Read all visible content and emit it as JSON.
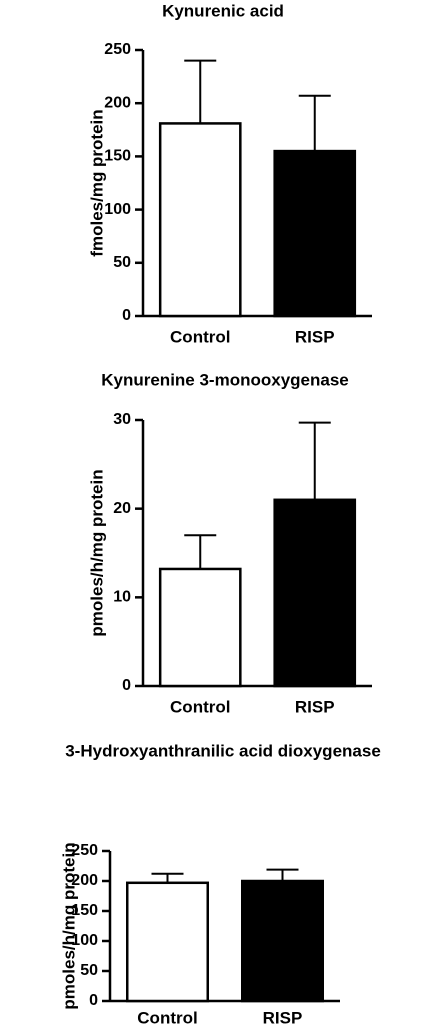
{
  "chart_data": [
    {
      "type": "bar",
      "title": "Kynurenic acid",
      "y_label": "fmoles/mg protein",
      "categories": [
        "Control",
        "RISP"
      ],
      "values": [
        181,
        155
      ],
      "errors": [
        59,
        52
      ],
      "colors": [
        "#ffffff",
        "#000000"
      ],
      "ylim": [
        0,
        250
      ],
      "yticks": [
        0,
        50,
        100,
        150,
        200,
        250
      ]
    },
    {
      "type": "bar",
      "title": "Kynurenine 3-monooxygenase",
      "y_label": "pmoles/h/mg protein",
      "categories": [
        "Control",
        "RISP"
      ],
      "values": [
        13.2,
        21
      ],
      "errors": [
        3.8,
        8.7
      ],
      "colors": [
        "#ffffff",
        "#000000"
      ],
      "ylim": [
        0,
        30
      ],
      "yticks": [
        0,
        10,
        20,
        30
      ]
    },
    {
      "type": "bar",
      "title": "3-Hydroxyanthranilic acid dioxygenase",
      "y_label": "pmoles/h/mg protein",
      "categories": [
        "Control",
        "RISP"
      ],
      "values": [
        197,
        200
      ],
      "errors": [
        15,
        19
      ],
      "colors": [
        "#ffffff",
        "#000000"
      ],
      "ylim": [
        0,
        250
      ],
      "yticks": [
        0,
        50,
        100,
        150,
        200,
        250
      ]
    }
  ]
}
